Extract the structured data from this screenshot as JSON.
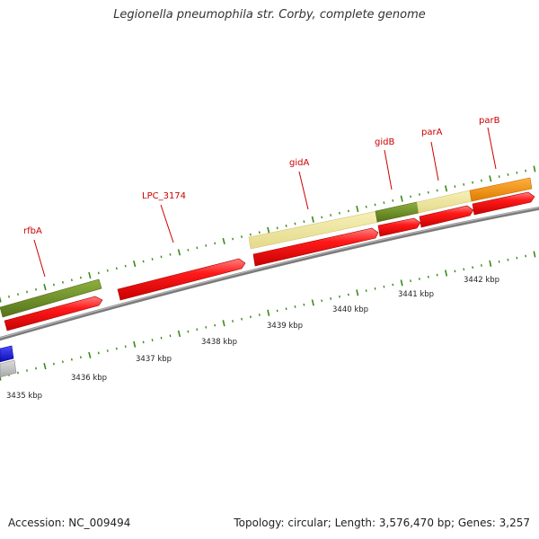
{
  "title": "Legionella pneumophila str. Corby, complete genome",
  "footer": {
    "accession": "Accession: NC_009494",
    "summary": "Topology: circular; Length: 3,576,470 bp; Genes: 3,257"
  },
  "colors": {
    "cds": "#ee1111",
    "gene_olive": "#6b8e23",
    "gene_yellow": "#ede59a",
    "gene_orange": "#f39200",
    "gene_blue": "#1a1ad6",
    "gene_grey": "#c0c0c0",
    "backbone": "#888888",
    "tick": "#3a8a1a",
    "label_red": "#cc0000"
  },
  "genes": [
    {
      "name": "rfbA"
    },
    {
      "name": "LPC_3174"
    },
    {
      "name": "gidA"
    },
    {
      "name": "gidB"
    },
    {
      "name": "parA"
    },
    {
      "name": "parB"
    }
  ],
  "scale": [
    {
      "label": "3435 kbp"
    },
    {
      "label": "3436 kbp"
    },
    {
      "label": "3437 kbp"
    },
    {
      "label": "3438 kbp"
    },
    {
      "label": "3439 kbp"
    },
    {
      "label": "3440 kbp"
    },
    {
      "label": "3441 kbp"
    },
    {
      "label": "3442 kbp"
    }
  ]
}
